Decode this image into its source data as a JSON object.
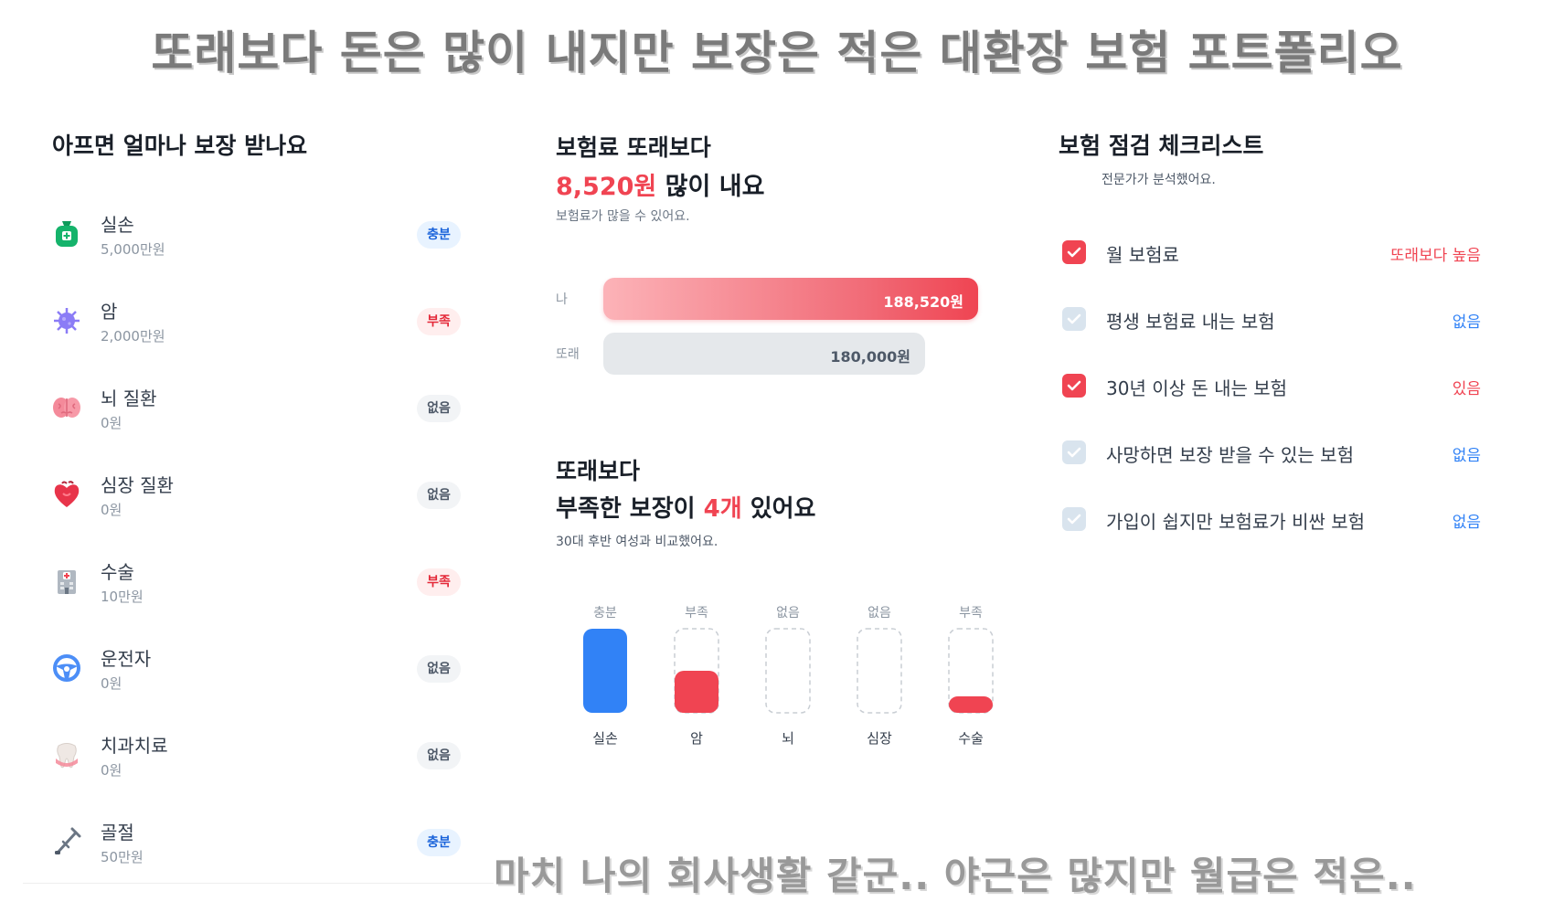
{
  "captions": {
    "top": "또래보다 돈은 많이 내지만 보장은 적은 대환장 보험 포트폴리오",
    "bottom": "마치 나의 회사생활 같군.. 야근은 많지만 월급은 적은.."
  },
  "coverage": {
    "title": "아프면 얼마나 보장 받나요",
    "items": [
      {
        "name": "실손",
        "amount": "5,000만원",
        "badge": "충분",
        "icon": "money-bag-icon",
        "color": "#15b36b"
      },
      {
        "name": "암",
        "amount": "2,000만원",
        "badge": "부족",
        "icon": "virus-icon",
        "color": "#8b7cf6"
      },
      {
        "name": "뇌 질환",
        "amount": "0원",
        "badge": "없음",
        "icon": "brain-icon",
        "color": "#f48a9a"
      },
      {
        "name": "심장 질환",
        "amount": "0원",
        "badge": "없음",
        "icon": "heart-icon",
        "color": "#e8344a"
      },
      {
        "name": "수술",
        "amount": "10만원",
        "badge": "부족",
        "icon": "hospital-icon",
        "color": "#9aa4b0"
      },
      {
        "name": "운전자",
        "amount": "0원",
        "badge": "없음",
        "icon": "steering-wheel-icon",
        "color": "#4c8ef7"
      },
      {
        "name": "치과치료",
        "amount": "0원",
        "badge": "없음",
        "icon": "tooth-icon",
        "color": "#e9e2de"
      },
      {
        "name": "골절",
        "amount": "50만원",
        "badge": "충분",
        "icon": "crutch-icon",
        "color": "#6b7684"
      }
    ]
  },
  "premium": {
    "title": "보험료 또래보다",
    "highlight": "8,520원",
    "title_suffix": " 많이 내요",
    "subtitle": "보험료가 많을 수 있어요.",
    "rows": [
      {
        "label": "나",
        "value": "188,520원",
        "amount": 188520
      },
      {
        "label": "또래",
        "value": "180,000원",
        "amount": 180000
      }
    ]
  },
  "lack": {
    "title": "또래보다",
    "line_prefix": "부족한 보장이 ",
    "highlight": "4개",
    "line_suffix": " 있어요",
    "subtitle": "30대 후반 여성과 비교했어요."
  },
  "chart_data": {
    "type": "bar",
    "categories": [
      "실손",
      "암",
      "뇌",
      "심장",
      "수술"
    ],
    "status_labels": [
      "충분",
      "부족",
      "없음",
      "없음",
      "부족"
    ],
    "values": [
      1.0,
      0.5,
      0.0,
      0.0,
      0.2
    ],
    "colors": [
      "#3182f6",
      "#f04452",
      "#f04452",
      "#f04452",
      "#f04452"
    ],
    "ylim": [
      0,
      1
    ]
  },
  "checklist": {
    "title": "보험 점검 체크리스트",
    "subtitle": "전문가가 분석했어요.",
    "items": [
      {
        "label": "월 보험료",
        "status": "또래보다 높음",
        "checked": true
      },
      {
        "label": "평생 보험료 내는 보험",
        "status": "없음",
        "checked": false
      },
      {
        "label": "30년 이상 돈 내는 보험",
        "status": "있음",
        "checked": true
      },
      {
        "label": "사망하면 보장 받을 수 있는 보험",
        "status": "없음",
        "checked": false
      },
      {
        "label": "가입이 쉽지만 보험료가 비싼 보험",
        "status": "없음",
        "checked": false
      }
    ]
  }
}
